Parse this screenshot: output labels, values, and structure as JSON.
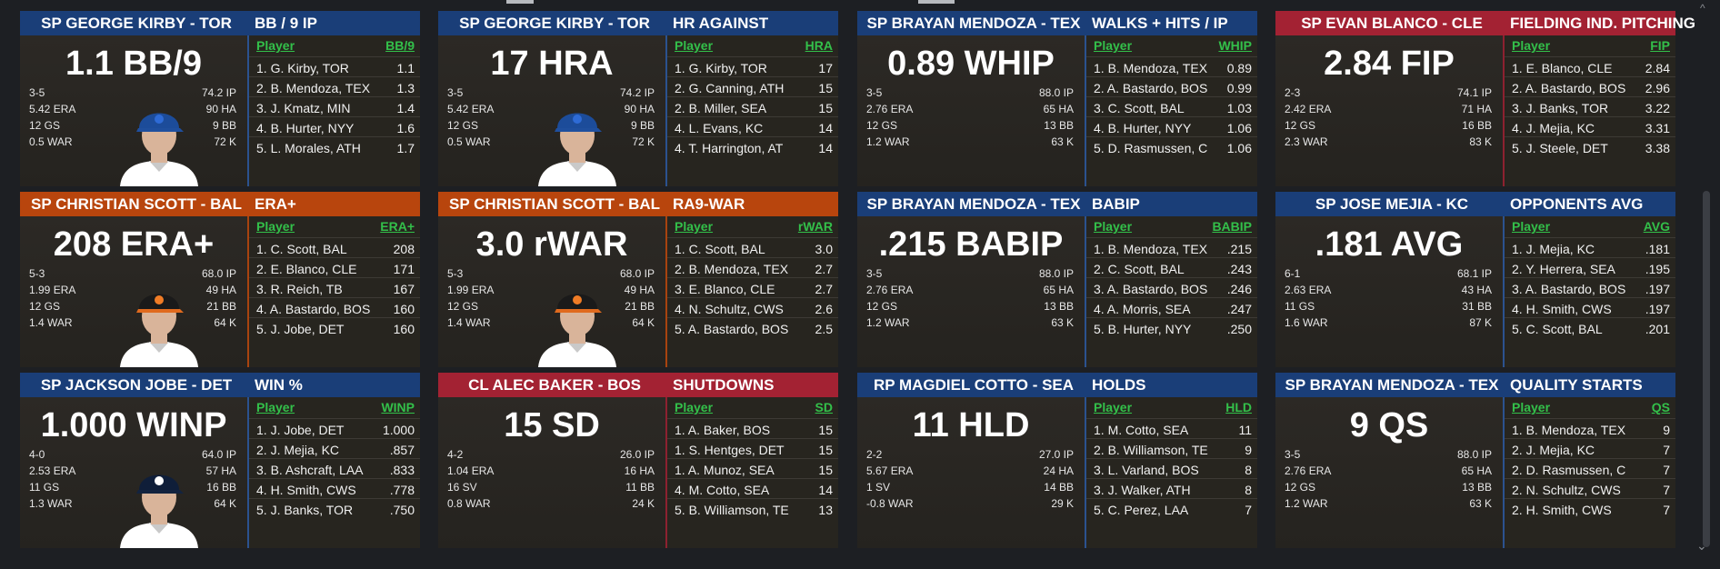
{
  "cards": [
    {
      "accent": "blue",
      "player": "SP GEORGE KIRBY - TOR",
      "category": "BB / 9 IP",
      "big_value": "1.1 BB/9",
      "team_icon": "blue-jays-cap",
      "left_stats": [
        "3-5",
        "5.42 ERA",
        "12 GS",
        "0.5 WAR"
      ],
      "right_stats": [
        "74.2 IP",
        "90 HA",
        "9 BB",
        "72 K"
      ],
      "stat_header": "BB/9",
      "leaders": [
        {
          "player": "1. G. Kirby, TOR",
          "value": "1.1"
        },
        {
          "player": "2. B. Mendoza, TEX",
          "value": "1.3"
        },
        {
          "player": "3. J. Kmatz, MIN",
          "value": "1.4"
        },
        {
          "player": "4. B. Hurter, NYY",
          "value": "1.6"
        },
        {
          "player": "5. L. Morales, ATH",
          "value": "1.7"
        }
      ]
    },
    {
      "accent": "blue",
      "player": "SP GEORGE KIRBY - TOR",
      "category": "HR AGAINST",
      "big_value": "17 HRA",
      "team_icon": "blue-jays-cap",
      "left_stats": [
        "3-5",
        "5.42 ERA",
        "12 GS",
        "0.5 WAR"
      ],
      "right_stats": [
        "74.2 IP",
        "90 HA",
        "9 BB",
        "72 K"
      ],
      "stat_header": "HRA",
      "leaders": [
        {
          "player": "1. G. Kirby, TOR",
          "value": "17"
        },
        {
          "player": "2. G. Canning, ATH",
          "value": "15"
        },
        {
          "player": "2. B. Miller, SEA",
          "value": "15"
        },
        {
          "player": "4. L. Evans, KC",
          "value": "14"
        },
        {
          "player": "4. T. Harrington, AT",
          "value": "14"
        }
      ]
    },
    {
      "accent": "blue",
      "player": "SP BRAYAN MENDOZA - TEX",
      "category": "WALKS + HITS / IP",
      "big_value": "0.89 WHIP",
      "team_icon": "none",
      "left_stats": [
        "3-5",
        "2.76 ERA",
        "12 GS",
        "1.2 WAR"
      ],
      "right_stats": [
        "88.0 IP",
        "65 HA",
        "13 BB",
        "63 K"
      ],
      "stat_header": "WHIP",
      "leaders": [
        {
          "player": "1. B. Mendoza, TEX",
          "value": "0.89"
        },
        {
          "player": "2. A. Bastardo, BOS",
          "value": "0.99"
        },
        {
          "player": "3. C. Scott, BAL",
          "value": "1.03"
        },
        {
          "player": "4. B. Hurter, NYY",
          "value": "1.06"
        },
        {
          "player": "5. D. Rasmussen, C",
          "value": "1.06"
        }
      ]
    },
    {
      "accent": "red",
      "player": "SP EVAN BLANCO - CLE",
      "category": "FIELDING IND. PITCHING",
      "big_value": "2.84 FIP",
      "team_icon": "none",
      "left_stats": [
        "2-3",
        "2.42 ERA",
        "12 GS",
        "2.3 WAR"
      ],
      "right_stats": [
        "74.1 IP",
        "71 HA",
        "16 BB",
        "83 K"
      ],
      "stat_header": "FIP",
      "leaders": [
        {
          "player": "1. E. Blanco, CLE",
          "value": "2.84"
        },
        {
          "player": "2. A. Bastardo, BOS",
          "value": "2.96"
        },
        {
          "player": "3. J. Banks, TOR",
          "value": "3.22"
        },
        {
          "player": "4. J. Mejia, KC",
          "value": "3.31"
        },
        {
          "player": "5. J. Steele, DET",
          "value": "3.38"
        }
      ]
    },
    {
      "accent": "orange",
      "player": "SP CHRISTIAN SCOTT - BAL",
      "category": "ERA+",
      "big_value": "208 ERA+",
      "team_icon": "orioles-cap",
      "left_stats": [
        "5-3",
        "1.99 ERA",
        "12 GS",
        "1.4 WAR"
      ],
      "right_stats": [
        "68.0 IP",
        "49 HA",
        "21 BB",
        "64 K"
      ],
      "stat_header": "ERA+",
      "leaders": [
        {
          "player": "1. C. Scott, BAL",
          "value": "208"
        },
        {
          "player": "2. E. Blanco, CLE",
          "value": "171"
        },
        {
          "player": "3. R. Reich, TB",
          "value": "167"
        },
        {
          "player": "4. A. Bastardo, BOS",
          "value": "160"
        },
        {
          "player": "5. J. Jobe, DET",
          "value": "160"
        }
      ]
    },
    {
      "accent": "orange",
      "player": "SP CHRISTIAN SCOTT - BAL",
      "category": "RA9-WAR",
      "big_value": "3.0 rWAR",
      "team_icon": "orioles-cap",
      "left_stats": [
        "5-3",
        "1.99 ERA",
        "12 GS",
        "1.4 WAR"
      ],
      "right_stats": [
        "68.0 IP",
        "49 HA",
        "21 BB",
        "64 K"
      ],
      "stat_header": "rWAR",
      "leaders": [
        {
          "player": "1. C. Scott, BAL",
          "value": "3.0"
        },
        {
          "player": "2. B. Mendoza, TEX",
          "value": "2.7"
        },
        {
          "player": "3. E. Blanco, CLE",
          "value": "2.7"
        },
        {
          "player": "4. N. Schultz, CWS",
          "value": "2.6"
        },
        {
          "player": "5. A. Bastardo, BOS",
          "value": "2.5"
        }
      ]
    },
    {
      "accent": "blue",
      "player": "SP BRAYAN MENDOZA - TEX",
      "category": "BABIP",
      "big_value": ".215 BABIP",
      "team_icon": "none",
      "left_stats": [
        "3-5",
        "2.76 ERA",
        "12 GS",
        "1.2 WAR"
      ],
      "right_stats": [
        "88.0 IP",
        "65 HA",
        "13 BB",
        "63 K"
      ],
      "stat_header": "BABIP",
      "leaders": [
        {
          "player": "1. B. Mendoza, TEX",
          "value": ".215"
        },
        {
          "player": "2. C. Scott, BAL",
          "value": ".243"
        },
        {
          "player": "3. A. Bastardo, BOS",
          "value": ".246"
        },
        {
          "player": "4. A. Morris, SEA",
          "value": ".247"
        },
        {
          "player": "5. B. Hurter, NYY",
          "value": ".250"
        }
      ]
    },
    {
      "accent": "blue",
      "player": "SP JOSE MEJIA - KC",
      "category": "OPPONENTS AVG",
      "big_value": ".181 AVG",
      "team_icon": "none",
      "left_stats": [
        "6-1",
        "2.63 ERA",
        "11 GS",
        "1.6 WAR"
      ],
      "right_stats": [
        "68.1 IP",
        "43 HA",
        "31 BB",
        "87 K"
      ],
      "stat_header": "AVG",
      "leaders": [
        {
          "player": "1. J. Mejia, KC",
          "value": ".181"
        },
        {
          "player": "2. Y. Herrera, SEA",
          "value": ".195"
        },
        {
          "player": "3. A. Bastardo, BOS",
          "value": ".197"
        },
        {
          "player": "4. H. Smith, CWS",
          "value": ".197"
        },
        {
          "player": "5. C. Scott, BAL",
          "value": ".201"
        }
      ]
    },
    {
      "accent": "blue",
      "player": "SP JACKSON JOBE - DET",
      "category": "WIN %",
      "big_value": "1.000 WINP",
      "team_icon": "tigers-cap",
      "left_stats": [
        "4-0",
        "2.53 ERA",
        "11 GS",
        "1.3 WAR"
      ],
      "right_stats": [
        "64.0 IP",
        "57 HA",
        "16 BB",
        "64 K"
      ],
      "stat_header": "WINP",
      "leaders": [
        {
          "player": "1. J. Jobe, DET",
          "value": "1.000"
        },
        {
          "player": "2. J. Mejia, KC",
          "value": ".857"
        },
        {
          "player": "3. B. Ashcraft, LAA",
          "value": ".833"
        },
        {
          "player": "4. H. Smith, CWS",
          "value": ".778"
        },
        {
          "player": "5. J. Banks, TOR",
          "value": ".750"
        }
      ]
    },
    {
      "accent": "red",
      "player": "CL ALEC BAKER - BOS",
      "category": "SHUTDOWNS",
      "big_value": "15 SD",
      "team_icon": "none",
      "left_stats": [
        "4-2",
        "1.04 ERA",
        "16 SV",
        "0.8 WAR"
      ],
      "right_stats": [
        "26.0 IP",
        "16 HA",
        "11 BB",
        "24 K"
      ],
      "stat_header": "SD",
      "leaders": [
        {
          "player": "1. A. Baker, BOS",
          "value": "15"
        },
        {
          "player": "1. S. Hentges, DET",
          "value": "15"
        },
        {
          "player": "1. A. Munoz, SEA",
          "value": "15"
        },
        {
          "player": "4. M. Cotto, SEA",
          "value": "14"
        },
        {
          "player": "5. B. Williamson, TE",
          "value": "13"
        }
      ]
    },
    {
      "accent": "blue",
      "player": "RP MAGDIEL COTTO - SEA",
      "category": "HOLDS",
      "big_value": "11 HLD",
      "team_icon": "none",
      "left_stats": [
        "2-2",
        "5.67 ERA",
        "1 SV",
        "-0.8 WAR"
      ],
      "right_stats": [
        "27.0 IP",
        "24 HA",
        "14 BB",
        "29 K"
      ],
      "stat_header": "HLD",
      "leaders": [
        {
          "player": "1. M. Cotto, SEA",
          "value": "11"
        },
        {
          "player": "2. B. Williamson, TE",
          "value": "9"
        },
        {
          "player": "3. L. Varland, BOS",
          "value": "8"
        },
        {
          "player": "3. J. Walker, ATH",
          "value": "8"
        },
        {
          "player": "5. C. Perez, LAA",
          "value": "7"
        }
      ]
    },
    {
      "accent": "blue",
      "player": "SP BRAYAN MENDOZA - TEX",
      "category": "QUALITY STARTS",
      "big_value": "9 QS",
      "team_icon": "none",
      "left_stats": [
        "3-5",
        "2.76 ERA",
        "12 GS",
        "1.2 WAR"
      ],
      "right_stats": [
        "88.0 IP",
        "65 HA",
        "13 BB",
        "63 K"
      ],
      "stat_header": "QS",
      "leaders": [
        {
          "player": "1. B. Mendoza, TEX",
          "value": "9"
        },
        {
          "player": "2. J. Mejia, KC",
          "value": "7"
        },
        {
          "player": "2. D. Rasmussen, C",
          "value": "7"
        },
        {
          "player": "2. N. Schultz, CWS",
          "value": "7"
        },
        {
          "player": "2. H. Smith, CWS",
          "value": "7"
        }
      ]
    }
  ],
  "leaderboard_column_label": "Player",
  "scrollbar": {
    "up_glyph": "^",
    "down_glyph": "⌄"
  }
}
